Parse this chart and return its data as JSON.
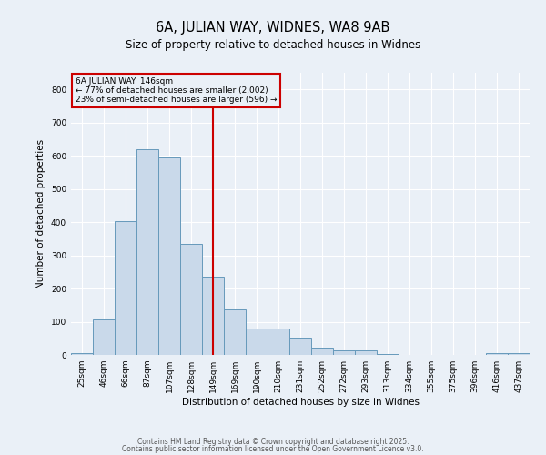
{
  "title": "6A, JULIAN WAY, WIDNES, WA8 9AB",
  "subtitle": "Size of property relative to detached houses in Widnes",
  "xlabel": "Distribution of detached houses by size in Widnes",
  "ylabel": "Number of detached properties",
  "categories": [
    "25sqm",
    "46sqm",
    "66sqm",
    "87sqm",
    "107sqm",
    "128sqm",
    "149sqm",
    "169sqm",
    "190sqm",
    "210sqm",
    "231sqm",
    "252sqm",
    "272sqm",
    "293sqm",
    "313sqm",
    "334sqm",
    "355sqm",
    "375sqm",
    "396sqm",
    "416sqm",
    "437sqm"
  ],
  "values": [
    5,
    108,
    403,
    620,
    595,
    335,
    235,
    138,
    80,
    80,
    52,
    22,
    13,
    13,
    4,
    0,
    0,
    0,
    0,
    6,
    6
  ],
  "bar_color": "#c9d9ea",
  "bar_edge_color": "#6699bb",
  "highlight_index": 6,
  "highlight_line_color": "#cc0000",
  "annotation_line1": "6A JULIAN WAY: 146sqm",
  "annotation_line2": "← 77% of detached houses are smaller (2,002)",
  "annotation_line3": "23% of semi-detached houses are larger (596) →",
  "annotation_box_color": "#cc0000",
  "ylim": [
    0,
    850
  ],
  "yticks": [
    0,
    100,
    200,
    300,
    400,
    500,
    600,
    700,
    800
  ],
  "background_color": "#eaf0f7",
  "grid_color": "#ffffff",
  "footer_line1": "Contains HM Land Registry data © Crown copyright and database right 2025.",
  "footer_line2": "Contains public sector information licensed under the Open Government Licence v3.0."
}
